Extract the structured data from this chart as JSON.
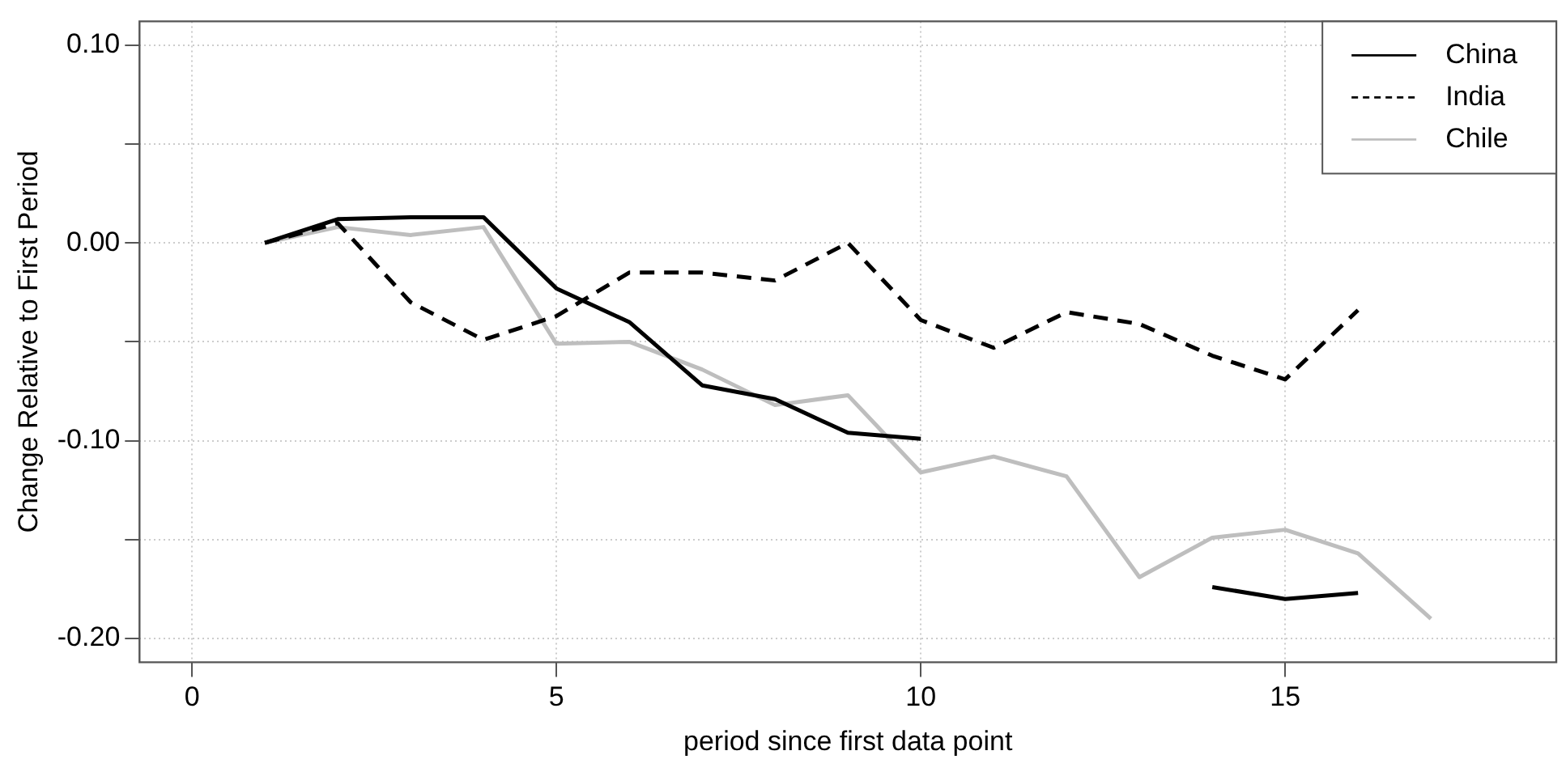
{
  "chart_data": {
    "type": "line",
    "xlabel": "period since first data point",
    "ylabel": "Change Relative to First Period",
    "x": [
      1,
      2,
      3,
      4,
      5,
      6,
      7,
      8,
      9,
      10,
      11,
      12,
      13,
      14,
      15,
      16,
      17
    ],
    "series": [
      {
        "name": "China",
        "color": "#000000",
        "line_style": "solid",
        "values": [
          0.0,
          0.012,
          0.013,
          0.013,
          -0.023,
          -0.04,
          -0.072,
          -0.079,
          -0.096,
          -0.099,
          null,
          null,
          null,
          -0.174,
          -0.18,
          -0.177,
          null
        ]
      },
      {
        "name": "India",
        "color": "#000000",
        "line_style": "dashed",
        "values": [
          0.0,
          0.01,
          -0.03,
          -0.049,
          -0.037,
          -0.015,
          -0.015,
          -0.019,
          0.0,
          -0.039,
          -0.053,
          -0.035,
          -0.041,
          -0.057,
          -0.069,
          -0.034,
          null
        ]
      },
      {
        "name": "Chile",
        "color": "#bebebe",
        "line_style": "solid",
        "values": [
          0.0,
          0.008,
          0.004,
          0.008,
          -0.051,
          -0.05,
          -0.064,
          -0.082,
          -0.077,
          -0.116,
          -0.108,
          -0.118,
          -0.169,
          -0.149,
          -0.145,
          -0.157,
          -0.19
        ]
      }
    ],
    "xlim": [
      -0.72,
      18.72
    ],
    "xticks": [
      0,
      5,
      10,
      15
    ],
    "ylim": [
      -0.212,
      0.112
    ],
    "yticks": [
      {
        "value": -0.2,
        "label": "-0.20"
      },
      {
        "value": -0.15,
        "label": null
      },
      {
        "value": -0.1,
        "label": "-0.10"
      },
      {
        "value": -0.05,
        "label": null
      },
      {
        "value": 0,
        "label": "0.00"
      },
      {
        "value": 0.05,
        "label": null
      },
      {
        "value": 0.1,
        "label": "0.10"
      }
    ],
    "grid": true,
    "legend": "top right",
    "marker": "none"
  }
}
